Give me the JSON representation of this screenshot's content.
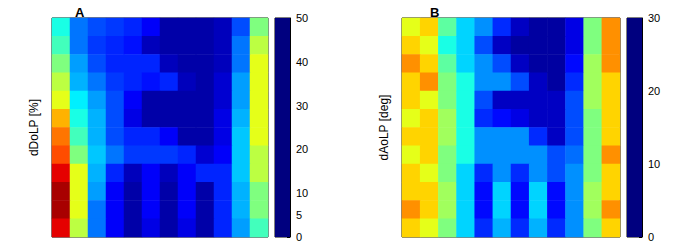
{
  "chart_data": [
    {
      "type": "heatmap",
      "title": "A",
      "ylabel": "dDoLP [%]",
      "tick_labels": false,
      "colors": [
        "#00007f",
        "#0000ff",
        "#007fff",
        "#00ffff",
        "#7fff7f",
        "#ffff00",
        "#ff7f00",
        "#ff0000",
        "#7f0000"
      ],
      "colorbar_range": [
        0,
        50
      ],
      "colorbar_ticks": [
        0,
        5,
        10,
        20,
        30,
        40,
        50
      ],
      "cells": [
        [
          20,
          12,
          10,
          9,
          8,
          6,
          2,
          2,
          2,
          3,
          10,
          25
        ],
        [
          22,
          12,
          9,
          8,
          7,
          3,
          2,
          2,
          2,
          3,
          12,
          28
        ],
        [
          25,
          14,
          10,
          8,
          8,
          8,
          3,
          2,
          2,
          3,
          12,
          30
        ],
        [
          28,
          15,
          12,
          9,
          8,
          7,
          8,
          3,
          2,
          4,
          14,
          30
        ],
        [
          30,
          18,
          14,
          10,
          6,
          2,
          2,
          2,
          2,
          4,
          14,
          30
        ],
        [
          35,
          20,
          15,
          10,
          5,
          2,
          2,
          2,
          2,
          5,
          15,
          30
        ],
        [
          38,
          22,
          15,
          10,
          8,
          8,
          6,
          2,
          2,
          5,
          16,
          30
        ],
        [
          40,
          25,
          16,
          12,
          9,
          9,
          9,
          8,
          4,
          6,
          16,
          28
        ],
        [
          45,
          30,
          15,
          8,
          3,
          6,
          3,
          6,
          8,
          8,
          16,
          28
        ],
        [
          48,
          30,
          14,
          6,
          2,
          6,
          2,
          6,
          2,
          8,
          15,
          25
        ],
        [
          48,
          30,
          12,
          6,
          2,
          6,
          2,
          6,
          2,
          8,
          15,
          25
        ],
        [
          45,
          28,
          12,
          6,
          2,
          5,
          2,
          5,
          2,
          8,
          14,
          22
        ]
      ]
    },
    {
      "type": "heatmap",
      "title": "B",
      "ylabel": "dAoLP [deg]",
      "tick_labels": false,
      "colors": [
        "#00007f",
        "#0000ff",
        "#007fff",
        "#00ffff",
        "#7fff7f",
        "#ffff00",
        "#ff7f00",
        "#ff0000",
        "#7f0000"
      ],
      "colorbar_range": [
        0,
        30
      ],
      "colorbar_ticks": [
        0,
        10,
        20,
        30
      ],
      "cells": [
        [
          18,
          20,
          14,
          10,
          8,
          5,
          2,
          1,
          1,
          3,
          15,
          22
        ],
        [
          20,
          18,
          12,
          10,
          6,
          2,
          1,
          1,
          1,
          3,
          15,
          22
        ],
        [
          22,
          20,
          14,
          10,
          8,
          6,
          2,
          1,
          1,
          4,
          16,
          22
        ],
        [
          20,
          22,
          15,
          12,
          8,
          8,
          6,
          2,
          1,
          5,
          16,
          20
        ],
        [
          20,
          18,
          15,
          12,
          6,
          2,
          2,
          2,
          2,
          6,
          16,
          20
        ],
        [
          18,
          20,
          16,
          12,
          5,
          4,
          3,
          2,
          2,
          6,
          15,
          20
        ],
        [
          20,
          20,
          16,
          12,
          8,
          8,
          8,
          5,
          2,
          6,
          15,
          20
        ],
        [
          18,
          20,
          15,
          12,
          8,
          8,
          8,
          8,
          6,
          7,
          15,
          22
        ],
        [
          20,
          18,
          15,
          10,
          5,
          8,
          5,
          8,
          6,
          8,
          15,
          20
        ],
        [
          20,
          20,
          16,
          10,
          4,
          10,
          4,
          10,
          4,
          8,
          16,
          20
        ],
        [
          22,
          20,
          16,
          10,
          4,
          10,
          4,
          10,
          4,
          8,
          16,
          22
        ],
        [
          20,
          18,
          15,
          10,
          5,
          9,
          5,
          9,
          5,
          8,
          15,
          20
        ]
      ]
    }
  ]
}
